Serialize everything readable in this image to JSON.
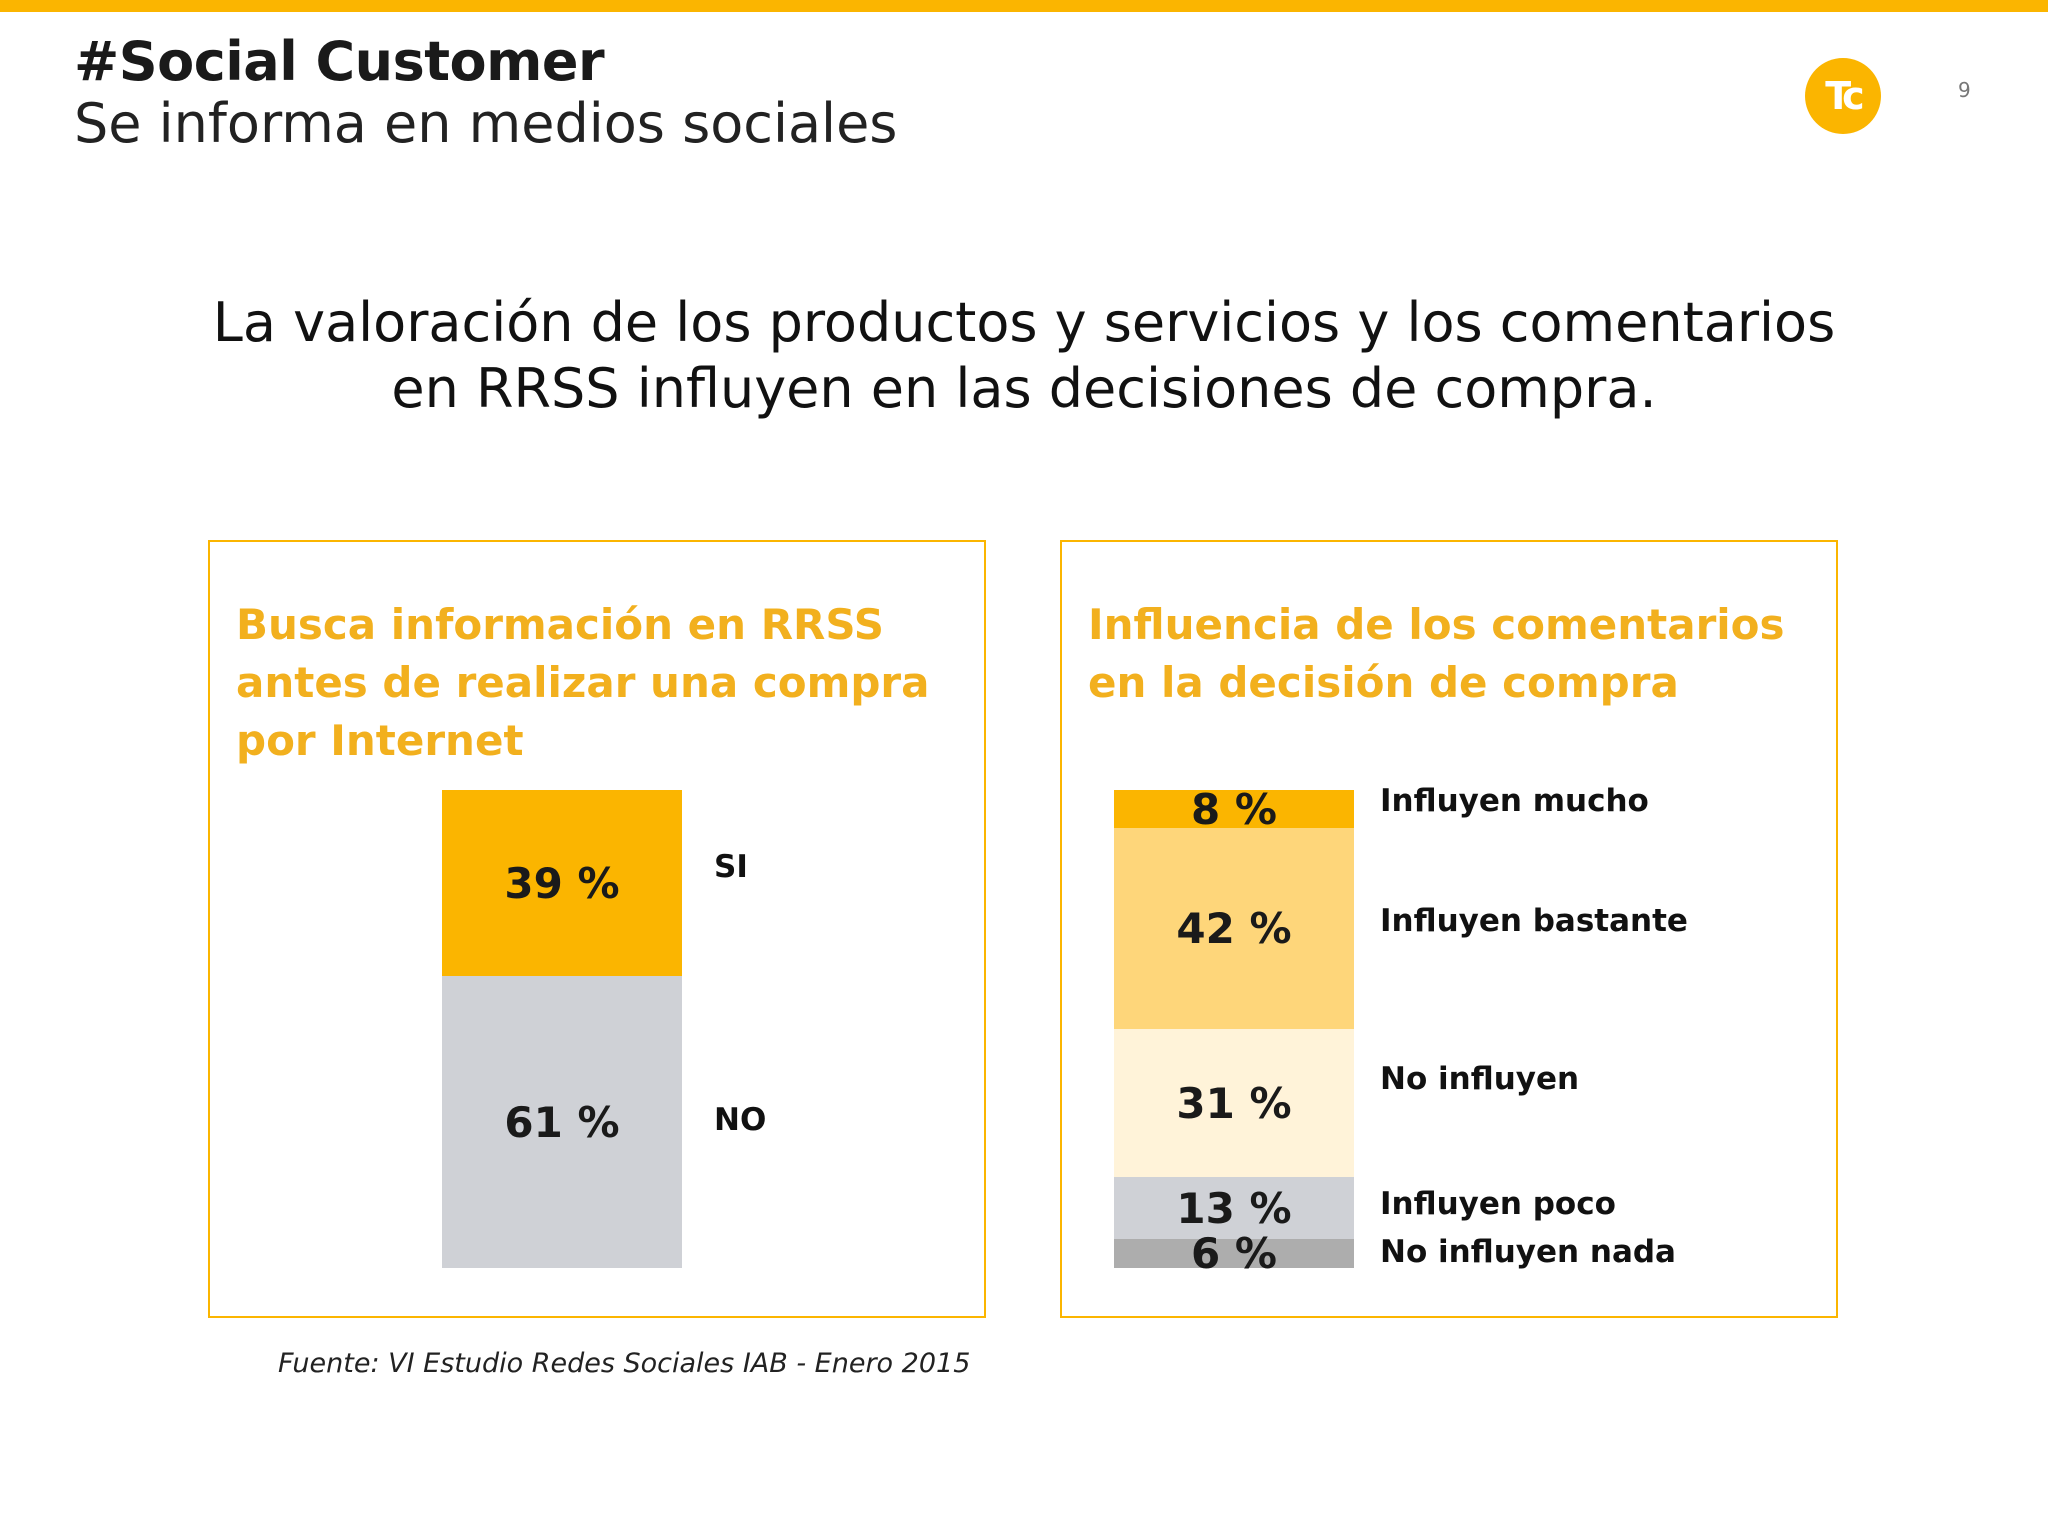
{
  "header": {
    "title": "#Social Customer",
    "subtitle": "Se informa en medios sociales",
    "logo_text": "Tc",
    "page_number": "9"
  },
  "headline": {
    "line1": "La valoración de los productos y servicios y los comentarios",
    "line2": "en RRSS influyen en las decisiones de compra."
  },
  "source": "Fuente: VI Estudio Redes Sociales IAB - Enero 2015",
  "colors": {
    "accent": "#fbb500",
    "title_text": "#f2b01e",
    "light_yellow": "#fed67a",
    "cream": "#fff3d9",
    "light_gray": "#cfd1d6",
    "dark_gray": "#adadad"
  },
  "chart_data": [
    {
      "type": "bar",
      "stacked": true,
      "title": "Busca información en RRSS antes de realizar una compra por Internet",
      "unit": "%",
      "segments": [
        {
          "name": "SI",
          "value": 39,
          "label": "39 %",
          "color": "#fbb500"
        },
        {
          "name": "NO",
          "value": 61,
          "label": "61 %",
          "color": "#cfd1d6"
        }
      ]
    },
    {
      "type": "bar",
      "stacked": true,
      "title": "Influencia de los comentarios en la decisión de compra",
      "unit": "%",
      "segments": [
        {
          "name": "Influyen mucho",
          "value": 8,
          "label": "8 %",
          "color": "#fbb500"
        },
        {
          "name": "Influyen bastante",
          "value": 42,
          "label": "42 %",
          "color": "#fed67a"
        },
        {
          "name": "No influyen",
          "value": 31,
          "label": "31 %",
          "color": "#fff3d9"
        },
        {
          "name": "Influyen poco",
          "value": 13,
          "label": "13 %",
          "color": "#cfd1d6"
        },
        {
          "name": "No influyen nada",
          "value": 6,
          "label": "6 %",
          "color": "#adadad"
        }
      ]
    }
  ]
}
